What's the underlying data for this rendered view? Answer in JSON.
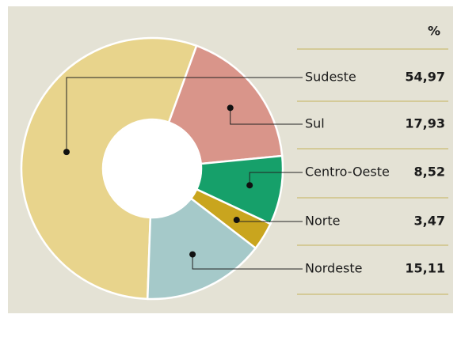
{
  "chart_data": {
    "type": "donut",
    "value_header": "%",
    "categories": [
      "Sudeste",
      "Sul",
      "Centro-Oeste",
      "Norte",
      "Nordeste"
    ],
    "values": [
      54.97,
      17.93,
      8.52,
      3.47,
      15.11
    ],
    "value_labels": [
      "54,97",
      "17,93",
      "8,52",
      "3,47",
      "15,11"
    ],
    "colors": [
      "#e8d48c",
      "#d9958a",
      "#16a06a",
      "#c9a51e",
      "#a5c9c9"
    ]
  }
}
